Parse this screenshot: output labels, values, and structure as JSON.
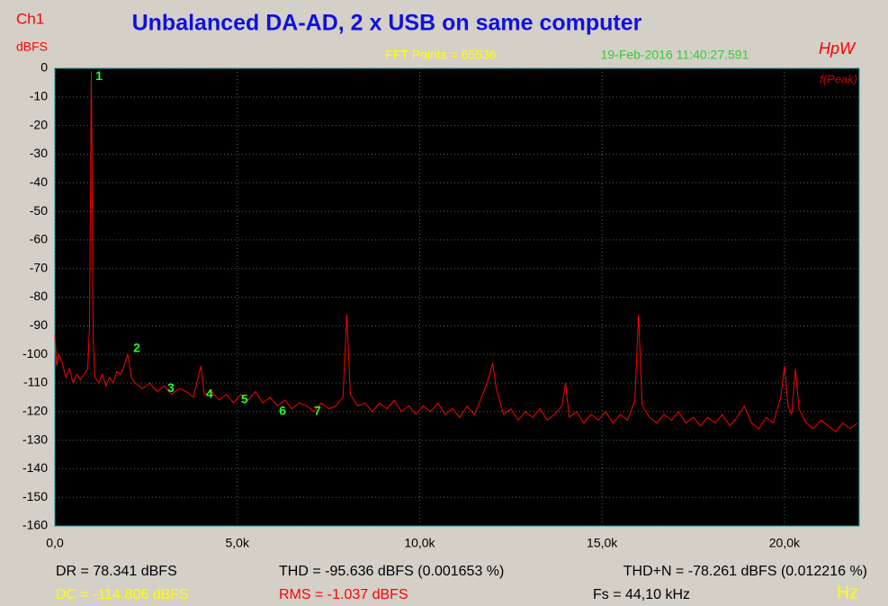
{
  "chart_data": {
    "type": "line",
    "title": "Unbalanced DA-AD, 2 x USB on same computer",
    "channel": "Ch1",
    "y_label": "dBFS",
    "x_label": "Hz",
    "fft_points": "FFT Points = 65536",
    "timestamp": "19-Feb-2016 11:40:27.591",
    "brand": "HpW",
    "mode": "f(Peak)",
    "stats": {
      "dr": "DR = 78.341 dBFS",
      "thd": "THD = -95.636 dBFS (0.001653 %)",
      "thdn": "THD+N = -78.261 dBFS (0.012216 %)",
      "dc": "DC = -114.806 dBFS",
      "rms": "RMS = -1.037 dBFS",
      "fs": "Fs = 44,10 kHz"
    },
    "xlim": [
      0,
      22050
    ],
    "ylim": [
      -160,
      0
    ],
    "xticks": [
      {
        "value": 0,
        "label": "0,0"
      },
      {
        "value": 5000,
        "label": "5,0k"
      },
      {
        "value": 10000,
        "label": "10,0k"
      },
      {
        "value": 15000,
        "label": "15,0k"
      },
      {
        "value": 20000,
        "label": "20,0k"
      }
    ],
    "yticks": [
      0,
      -10,
      -20,
      -30,
      -40,
      -50,
      -60,
      -70,
      -80,
      -90,
      -100,
      -110,
      -120,
      -130,
      -140,
      -150,
      -160
    ],
    "grid": true,
    "markers": [
      {
        "label": "1",
        "x": 1210,
        "y": -3
      },
      {
        "label": "2",
        "x": 2245,
        "y": -98
      },
      {
        "label": "3",
        "x": 3180,
        "y": -112
      },
      {
        "label": "4",
        "x": 4240,
        "y": -114
      },
      {
        "label": "5",
        "x": 5200,
        "y": -116
      },
      {
        "label": "6",
        "x": 6240,
        "y": -120
      },
      {
        "label": "7",
        "x": 7200,
        "y": -120
      }
    ],
    "series": [
      {
        "name": "Ch1",
        "color": "#ff0000",
        "x": [
          0,
          50,
          100,
          200,
          300,
          400,
          500,
          600,
          700,
          800,
          900,
          950,
          980,
          1000,
          1020,
          1050,
          1100,
          1200,
          1300,
          1400,
          1500,
          1600,
          1700,
          1800,
          1900,
          2000,
          2100,
          2200,
          2400,
          2600,
          2800,
          3000,
          3200,
          3400,
          3600,
          3800,
          4000,
          4100,
          4300,
          4500,
          4700,
          4900,
          5100,
          5300,
          5500,
          5700,
          5900,
          6100,
          6300,
          6500,
          6700,
          6900,
          7100,
          7300,
          7500,
          7700,
          7900,
          8000,
          8100,
          8300,
          8500,
          8700,
          8900,
          9100,
          9300,
          9500,
          9700,
          9900,
          10100,
          10300,
          10500,
          10700,
          10900,
          11100,
          11300,
          11500,
          11700,
          11900,
          12000,
          12100,
          12300,
          12500,
          12700,
          12900,
          13100,
          13300,
          13500,
          13700,
          13900,
          14000,
          14100,
          14300,
          14500,
          14700,
          14900,
          15100,
          15300,
          15500,
          15700,
          15900,
          16000,
          16100,
          16300,
          16500,
          16700,
          16900,
          17100,
          17300,
          17500,
          17700,
          17900,
          18100,
          18300,
          18500,
          18700,
          18900,
          19100,
          19300,
          19500,
          19700,
          19900,
          20000,
          20100,
          20200,
          20300,
          20400,
          20600,
          20800,
          21000,
          21200,
          21400,
          21600,
          21800,
          22000
        ],
        "values": [
          -93,
          -104,
          -100,
          -103,
          -108,
          -105,
          -110,
          -107,
          -109,
          -107,
          -105,
          -90,
          -40,
          -1,
          -40,
          -95,
          -108,
          -110,
          -107,
          -111,
          -108,
          -110,
          -106,
          -107,
          -104,
          -100,
          -108,
          -110,
          -112,
          -110,
          -113,
          -111,
          -114,
          -112,
          -113,
          -115,
          -104,
          -114,
          -113,
          -116,
          -114,
          -117,
          -114,
          -116,
          -113,
          -117,
          -115,
          -118,
          -116,
          -119,
          -117,
          -118,
          -120,
          -117,
          -119,
          -118,
          -115,
          -86,
          -114,
          -118,
          -117,
          -120,
          -117,
          -119,
          -116,
          -120,
          -118,
          -121,
          -118,
          -120,
          -117,
          -121,
          -119,
          -122,
          -118,
          -121,
          -115,
          -108,
          -103,
          -112,
          -121,
          -119,
          -123,
          -120,
          -122,
          -119,
          -123,
          -121,
          -118,
          -110,
          -122,
          -120,
          -124,
          -121,
          -123,
          -120,
          -124,
          -121,
          -123,
          -116,
          -86,
          -118,
          -122,
          -124,
          -121,
          -123,
          -120,
          -124,
          -122,
          -125,
          -122,
          -124,
          -121,
          -125,
          -122,
          -118,
          -124,
          -126,
          -122,
          -124,
          -115,
          -104,
          -118,
          -121,
          -105,
          -119,
          -124,
          -126,
          -123,
          -125,
          -127,
          -124,
          -126,
          -124
        ]
      }
    ]
  }
}
